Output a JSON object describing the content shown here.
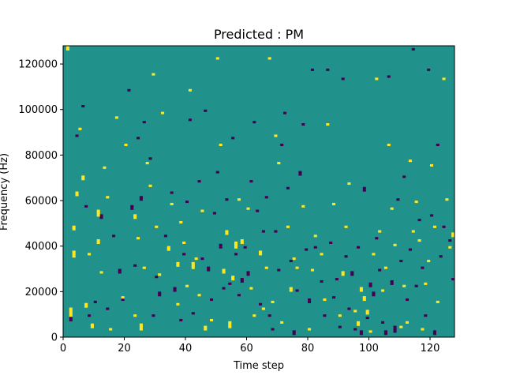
{
  "chart_data": {
    "type": "heatmap",
    "title": "Predicted : PM",
    "xlabel": "Time step",
    "ylabel": "Frequency (Hz)",
    "xlim": [
      0,
      128
    ],
    "ylim": [
      0,
      128000
    ],
    "x_ticks": [
      0,
      20,
      40,
      60,
      80,
      100,
      120
    ],
    "y_ticks": [
      0,
      20000,
      40000,
      60000,
      80000,
      100000,
      120000
    ],
    "n_time_steps": 128,
    "n_freq_bins": 128,
    "grid": false,
    "legend": "none",
    "colors": {
      "background": "#21918c",
      "high": "#fde725",
      "low": "#440154"
    },
    "background_value": 0,
    "high_cells_note": "value +1 (yellow)",
    "marks": {
      "high": [
        [
          1.5,
          126000,
          2
        ],
        [
          2.5,
          9000,
          4
        ],
        [
          3.5,
          35000,
          3
        ],
        [
          3.5,
          47000,
          2
        ],
        [
          4.5,
          62000,
          2
        ],
        [
          5.5,
          91000,
          1
        ],
        [
          6.5,
          69000,
          2
        ],
        [
          7.5,
          13000,
          2
        ],
        [
          8.5,
          36000,
          1
        ],
        [
          9.5,
          4000,
          2
        ],
        [
          11.5,
          53000,
          3
        ],
        [
          11.5,
          41000,
          2
        ],
        [
          12.5,
          28000,
          1
        ],
        [
          13.5,
          74000,
          1
        ],
        [
          14.5,
          61000,
          1
        ],
        [
          15.5,
          3000,
          1
        ],
        [
          17.5,
          96000,
          1
        ],
        [
          19.5,
          17000,
          1
        ],
        [
          20.5,
          84000,
          1
        ],
        [
          23.5,
          52000,
          2
        ],
        [
          23.5,
          9000,
          1
        ],
        [
          24.5,
          43000,
          1
        ],
        [
          25.5,
          3000,
          3
        ],
        [
          26.5,
          30000,
          1
        ],
        [
          27.5,
          76000,
          1
        ],
        [
          28.5,
          66000,
          1
        ],
        [
          29.5,
          115000,
          1
        ],
        [
          30.5,
          48000,
          1
        ],
        [
          31.5,
          27000,
          1
        ],
        [
          32.5,
          98000,
          1
        ],
        [
          34.5,
          38000,
          2
        ],
        [
          35.5,
          58000,
          1
        ],
        [
          37.5,
          14000,
          1
        ],
        [
          37.5,
          31000,
          2
        ],
        [
          38.5,
          50000,
          1
        ],
        [
          39.5,
          41000,
          1
        ],
        [
          40.5,
          22000,
          1
        ],
        [
          41.5,
          108000,
          1
        ],
        [
          42.5,
          30000,
          3
        ],
        [
          43.5,
          34000,
          1
        ],
        [
          44.5,
          18000,
          1
        ],
        [
          45.5,
          55000,
          1
        ],
        [
          46.5,
          3000,
          2
        ],
        [
          48.5,
          7000,
          1
        ],
        [
          50.5,
          122000,
          1
        ],
        [
          51.5,
          84000,
          1
        ],
        [
          52.5,
          28000,
          2
        ],
        [
          53.5,
          45000,
          2
        ],
        [
          54.5,
          4000,
          3
        ],
        [
          55.5,
          25000,
          2
        ],
        [
          56.5,
          39000,
          3
        ],
        [
          57.5,
          60000,
          1
        ],
        [
          58.5,
          41000,
          2
        ],
        [
          60.5,
          56000,
          1
        ],
        [
          61.5,
          21000,
          1
        ],
        [
          62.5,
          9000,
          1
        ],
        [
          64.5,
          36000,
          2
        ],
        [
          65.5,
          12000,
          1
        ],
        [
          66.5,
          30000,
          1
        ],
        [
          67.5,
          122000,
          1
        ],
        [
          68.5,
          15000,
          1
        ],
        [
          69.5,
          88000,
          1
        ],
        [
          70.5,
          76000,
          1
        ],
        [
          71.5,
          6000,
          1
        ],
        [
          73.5,
          48000,
          1
        ],
        [
          74.5,
          20000,
          2
        ],
        [
          75.5,
          34000,
          1
        ],
        [
          76.5,
          30000,
          1
        ],
        [
          78.5,
          57000,
          1
        ],
        [
          80.5,
          3000,
          1
        ],
        [
          81.5,
          29000,
          1
        ],
        [
          82.5,
          44000,
          1
        ],
        [
          84.5,
          36000,
          1
        ],
        [
          85.5,
          16000,
          1
        ],
        [
          86.5,
          93000,
          1
        ],
        [
          88.5,
          58000,
          1
        ],
        [
          90.5,
          9000,
          1
        ],
        [
          91.5,
          27000,
          2
        ],
        [
          92.5,
          48000,
          1
        ],
        [
          93.5,
          67000,
          1
        ],
        [
          95.5,
          11000,
          1
        ],
        [
          96.5,
          5000,
          2
        ],
        [
          97.5,
          20000,
          2
        ],
        [
          98.5,
          16000,
          2
        ],
        [
          99.5,
          10000,
          2
        ],
        [
          100.5,
          2000,
          1
        ],
        [
          101.5,
          36000,
          1
        ],
        [
          102.5,
          113000,
          1
        ],
        [
          103.5,
          46000,
          1
        ],
        [
          104.5,
          20000,
          1
        ],
        [
          105.5,
          30000,
          1
        ],
        [
          106.5,
          84000,
          1
        ],
        [
          107.5,
          56000,
          1
        ],
        [
          108.5,
          40000,
          1
        ],
        [
          110.5,
          4000,
          1
        ],
        [
          111.5,
          22000,
          1
        ],
        [
          112.5,
          6000,
          1
        ],
        [
          113.5,
          77000,
          1
        ],
        [
          114.5,
          46000,
          1
        ],
        [
          115.5,
          59000,
          1
        ],
        [
          116.5,
          42000,
          1
        ],
        [
          117.5,
          3000,
          1
        ],
        [
          118.5,
          23000,
          1
        ],
        [
          119.5,
          33000,
          1
        ],
        [
          120.5,
          75000,
          1
        ],
        [
          121.5,
          48000,
          1
        ],
        [
          122.5,
          15000,
          1
        ],
        [
          124.5,
          113000,
          1
        ],
        [
          125.5,
          60000,
          1
        ],
        [
          126.5,
          39000,
          1
        ],
        [
          127.5,
          44000,
          2
        ]
      ],
      "low": [
        [
          2.5,
          7000,
          2
        ],
        [
          4.5,
          88000,
          1
        ],
        [
          6.5,
          101000,
          1
        ],
        [
          7.5,
          57000,
          1
        ],
        [
          8.5,
          9000,
          1
        ],
        [
          10.5,
          15000,
          1
        ],
        [
          12.5,
          52000,
          2
        ],
        [
          14.5,
          12000,
          1
        ],
        [
          16.5,
          44000,
          1
        ],
        [
          18.5,
          28000,
          2
        ],
        [
          19.5,
          16000,
          1
        ],
        [
          21.5,
          108000,
          1
        ],
        [
          22.5,
          56000,
          2
        ],
        [
          23.5,
          31000,
          1
        ],
        [
          24.5,
          87000,
          1
        ],
        [
          25.5,
          60000,
          2
        ],
        [
          26.5,
          94000,
          1
        ],
        [
          28.5,
          78000,
          1
        ],
        [
          29.5,
          9000,
          1
        ],
        [
          30.5,
          26000,
          1
        ],
        [
          31.5,
          18000,
          2
        ],
        [
          33.5,
          44000,
          1
        ],
        [
          35.5,
          63000,
          1
        ],
        [
          36.5,
          20000,
          2
        ],
        [
          38.5,
          7000,
          1
        ],
        [
          39.5,
          36000,
          1
        ],
        [
          40.5,
          59000,
          1
        ],
        [
          41.5,
          95000,
          1
        ],
        [
          42.5,
          10000,
          1
        ],
        [
          44.5,
          68000,
          1
        ],
        [
          45.5,
          34000,
          1
        ],
        [
          46.5,
          99000,
          1
        ],
        [
          47.5,
          29000,
          2
        ],
        [
          48.5,
          16000,
          1
        ],
        [
          49.5,
          54000,
          1
        ],
        [
          50.5,
          72000,
          1
        ],
        [
          51.5,
          39000,
          2
        ],
        [
          52.5,
          21000,
          1
        ],
        [
          53.5,
          60000,
          1
        ],
        [
          54.5,
          23000,
          1
        ],
        [
          55.5,
          87000,
          1
        ],
        [
          56.5,
          36000,
          1
        ],
        [
          57.5,
          18000,
          1
        ],
        [
          58.5,
          24000,
          2
        ],
        [
          59.5,
          39000,
          1
        ],
        [
          60.5,
          27000,
          2
        ],
        [
          61.5,
          68000,
          1
        ],
        [
          62.5,
          94000,
          1
        ],
        [
          63.5,
          55000,
          1
        ],
        [
          64.5,
          14000,
          1
        ],
        [
          65.5,
          46000,
          1
        ],
        [
          66.5,
          61000,
          1
        ],
        [
          67.5,
          9000,
          1
        ],
        [
          68.5,
          3000,
          1
        ],
        [
          69.5,
          46000,
          1
        ],
        [
          70.5,
          29000,
          1
        ],
        [
          71.5,
          84000,
          1
        ],
        [
          72.5,
          98000,
          1
        ],
        [
          73.5,
          65000,
          1
        ],
        [
          74.5,
          33000,
          1
        ],
        [
          75.5,
          1000,
          2
        ],
        [
          76.5,
          20000,
          1
        ],
        [
          77.5,
          71000,
          2
        ],
        [
          78.5,
          93000,
          1
        ],
        [
          79.5,
          38000,
          1
        ],
        [
          80.5,
          15000,
          2
        ],
        [
          81.5,
          117000,
          1
        ],
        [
          82.5,
          39000,
          1
        ],
        [
          84.5,
          24000,
          1
        ],
        [
          85.5,
          9000,
          1
        ],
        [
          86.5,
          117000,
          1
        ],
        [
          87.5,
          41000,
          1
        ],
        [
          88.5,
          17000,
          1
        ],
        [
          89.5,
          25000,
          1
        ],
        [
          90.5,
          4000,
          1
        ],
        [
          91.5,
          113000,
          1
        ],
        [
          92.5,
          35000,
          1
        ],
        [
          93.5,
          12000,
          1
        ],
        [
          94.5,
          27000,
          2
        ],
        [
          95.5,
          3000,
          1
        ],
        [
          96.5,
          39000,
          1
        ],
        [
          97.5,
          1000,
          2
        ],
        [
          98.5,
          64000,
          2
        ],
        [
          99.5,
          8000,
          1
        ],
        [
          100.5,
          22000,
          2
        ],
        [
          101.5,
          18000,
          2
        ],
        [
          102.5,
          43000,
          1
        ],
        [
          103.5,
          29000,
          1
        ],
        [
          104.5,
          6000,
          1
        ],
        [
          105.5,
          1000,
          2
        ],
        [
          106.5,
          114000,
          1
        ],
        [
          107.5,
          23000,
          2
        ],
        [
          108.5,
          2000,
          3
        ],
        [
          109.5,
          60000,
          1
        ],
        [
          110.5,
          33000,
          1
        ],
        [
          111.5,
          70000,
          1
        ],
        [
          112.5,
          16000,
          1
        ],
        [
          113.5,
          38000,
          1
        ],
        [
          114.5,
          126000,
          1
        ],
        [
          115.5,
          22000,
          1
        ],
        [
          116.5,
          51000,
          1
        ],
        [
          117.5,
          30000,
          1
        ],
        [
          118.5,
          9000,
          1
        ],
        [
          119.5,
          117000,
          1
        ],
        [
          120.5,
          53000,
          1
        ],
        [
          121.5,
          1000,
          2
        ],
        [
          122.5,
          84000,
          1
        ],
        [
          123.5,
          35000,
          1
        ],
        [
          124.5,
          48000,
          1
        ],
        [
          126.5,
          42000,
          1
        ],
        [
          127.5,
          25000,
          1
        ]
      ]
    }
  }
}
